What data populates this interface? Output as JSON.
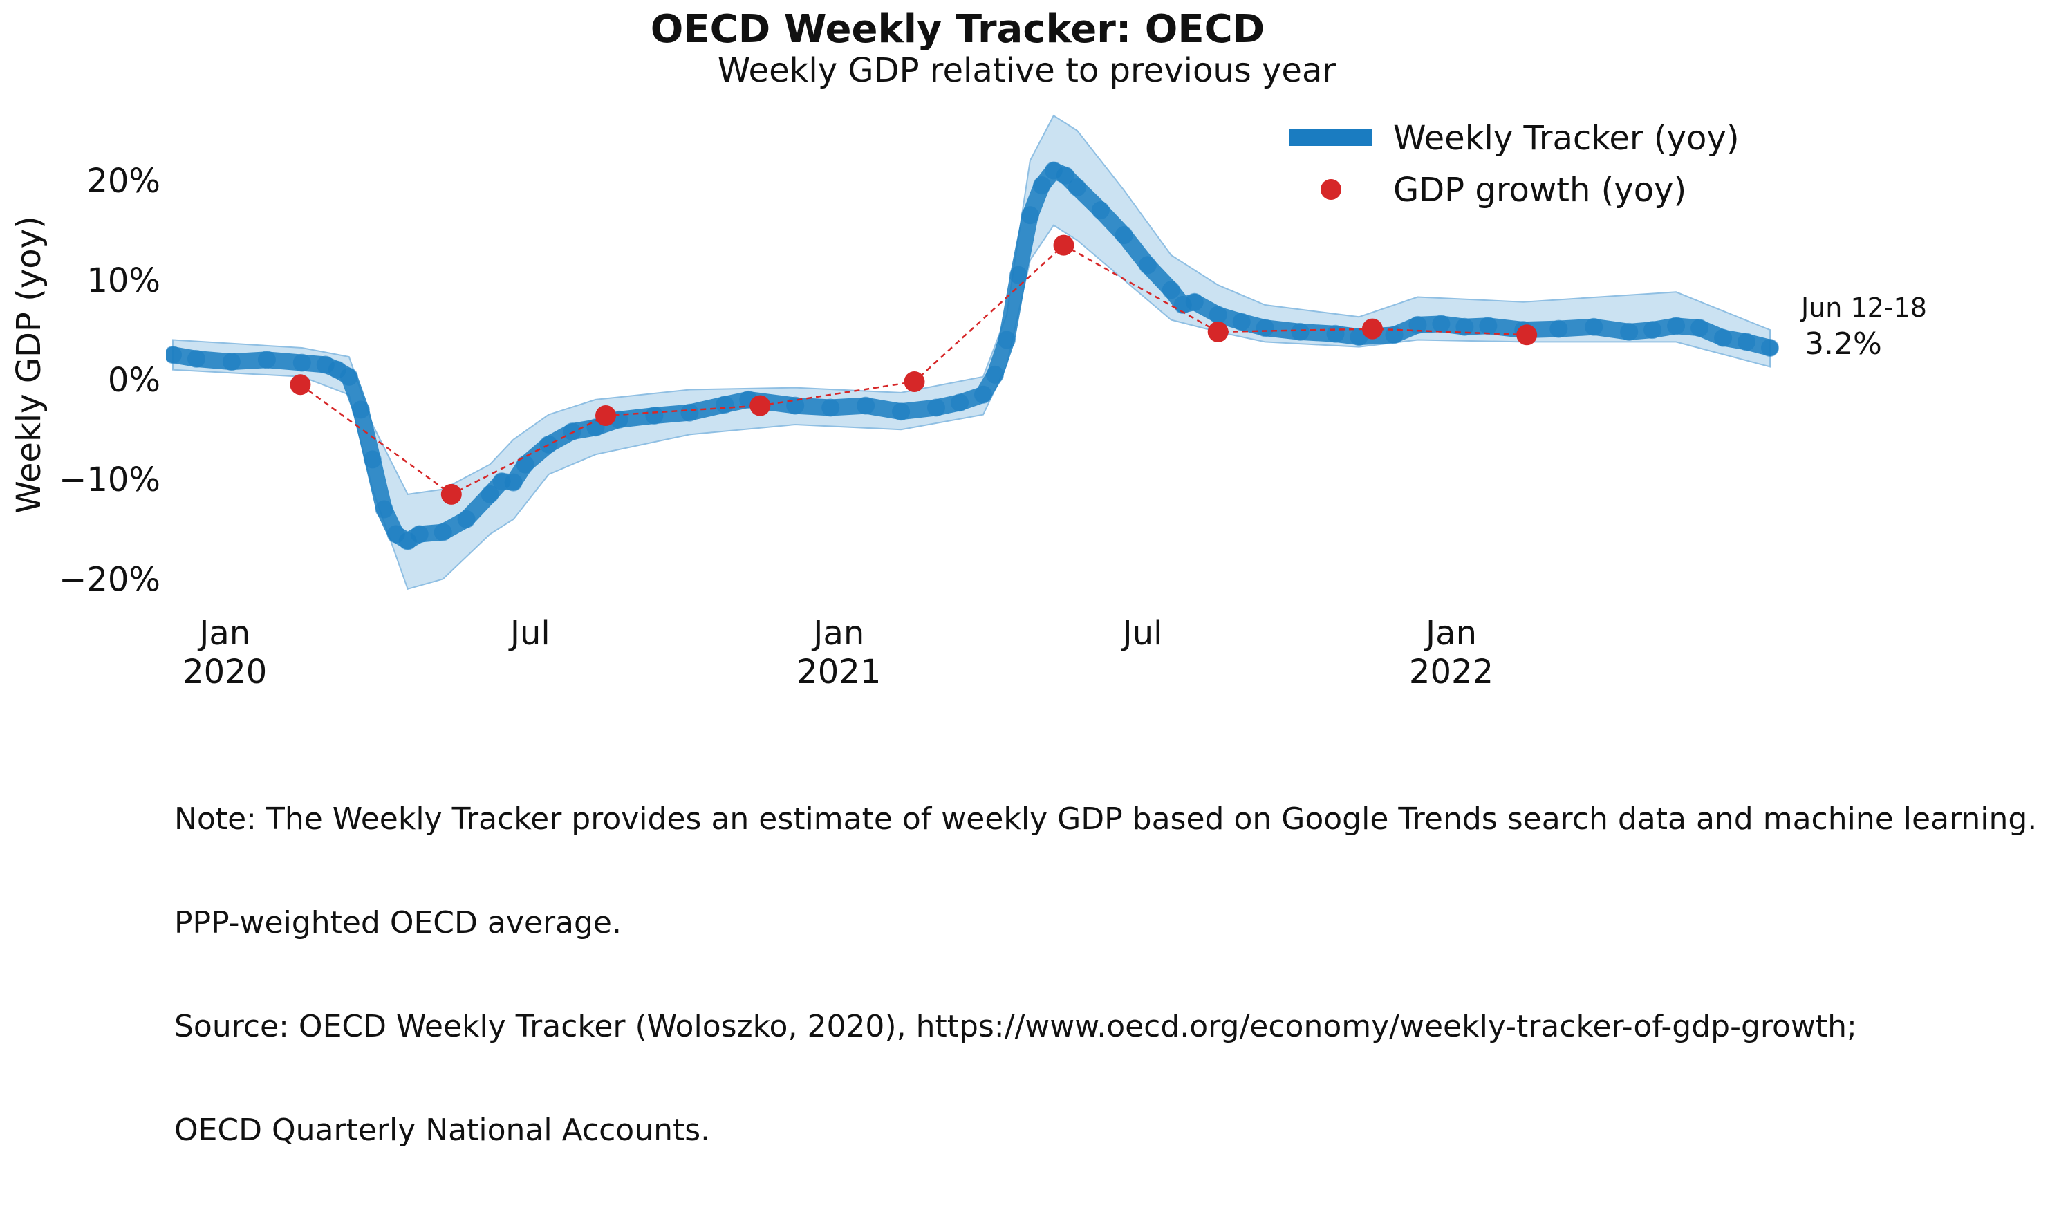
{
  "title": "OECD Weekly Tracker: OECD",
  "subtitle": "Weekly GDP relative to previous year",
  "notes": [
    "Note: The Weekly Tracker provides an estimate of weekly GDP based on Google Trends search data and machine learning.",
    "PPP-weighted OECD average.",
    "Source: OECD Weekly Tracker (Woloszko, 2020), https://www.oecd.org/economy/weekly-tracker-of-gdp-growth;",
    "OECD Quarterly National Accounts."
  ],
  "colors": {
    "tracker": "#1a7cc1",
    "band": "#a9cfea",
    "gdp": "#d62728"
  },
  "chart_data": {
    "type": "line",
    "ylabel": "Weekly GDP (yoy)",
    "ylim": [
      -24,
      27
    ],
    "yticks": [
      -20,
      -10,
      0,
      10,
      20
    ],
    "ytick_labels": [
      "−20%",
      "−10%",
      "0%",
      "10%",
      "20%"
    ],
    "xticks": [
      {
        "date": "2020-01-01",
        "label": [
          "Jan",
          "2020"
        ]
      },
      {
        "date": "2020-07-01",
        "label": [
          "Jul"
        ]
      },
      {
        "date": "2021-01-01",
        "label": [
          "Jan",
          "2021"
        ]
      },
      {
        "date": "2021-07-01",
        "label": [
          "Jul"
        ]
      },
      {
        "date": "2022-01-01",
        "label": [
          "Jan",
          "2022"
        ]
      }
    ],
    "x_range": [
      "2019-12-01",
      "2022-07-10"
    ],
    "legend": {
      "placement": "top-right",
      "entries": [
        "Weekly Tracker (yoy)",
        "GDP growth (yoy)"
      ]
    },
    "last_value_label": {
      "date": "Jun 12-18",
      "value": "3.2%"
    },
    "series": [
      {
        "name": "Weekly Tracker (yoy)",
        "kind": "line-with-band",
        "points": [
          [
            "2019-12-01",
            2.5
          ],
          [
            "2019-12-15",
            2.1
          ],
          [
            "2020-01-05",
            1.8
          ],
          [
            "2020-01-26",
            2.0
          ],
          [
            "2020-02-16",
            1.7
          ],
          [
            "2020-03-01",
            1.5
          ],
          [
            "2020-03-08",
            1.0
          ],
          [
            "2020-03-15",
            0.3
          ],
          [
            "2020-03-22",
            -3.0
          ],
          [
            "2020-03-29",
            -8.0
          ],
          [
            "2020-04-05",
            -13.0
          ],
          [
            "2020-04-12",
            -15.5
          ],
          [
            "2020-04-19",
            -16.2
          ],
          [
            "2020-04-26",
            -15.5
          ],
          [
            "2020-05-10",
            -15.3
          ],
          [
            "2020-05-24",
            -14.0
          ],
          [
            "2020-06-07",
            -11.5
          ],
          [
            "2020-06-14",
            -10.2
          ],
          [
            "2020-06-21",
            -10.3
          ],
          [
            "2020-06-28",
            -8.5
          ],
          [
            "2020-07-12",
            -6.5
          ],
          [
            "2020-07-26",
            -5.2
          ],
          [
            "2020-08-09",
            -4.8
          ],
          [
            "2020-08-23",
            -4.0
          ],
          [
            "2020-09-13",
            -3.6
          ],
          [
            "2020-10-04",
            -3.3
          ],
          [
            "2020-10-25",
            -2.5
          ],
          [
            "2020-11-08",
            -2.0
          ],
          [
            "2020-12-06",
            -2.6
          ],
          [
            "2020-12-27",
            -2.8
          ],
          [
            "2021-01-17",
            -2.6
          ],
          [
            "2021-02-07",
            -3.2
          ],
          [
            "2021-02-28",
            -2.8
          ],
          [
            "2021-03-14",
            -2.3
          ],
          [
            "2021-03-28",
            -1.5
          ],
          [
            "2021-04-04",
            0.5
          ],
          [
            "2021-04-11",
            4.0
          ],
          [
            "2021-04-18",
            10.5
          ],
          [
            "2021-04-25",
            16.5
          ],
          [
            "2021-05-02",
            19.5
          ],
          [
            "2021-05-09",
            21.0
          ],
          [
            "2021-05-16",
            20.5
          ],
          [
            "2021-05-23",
            19.3
          ],
          [
            "2021-06-06",
            17.0
          ],
          [
            "2021-06-20",
            14.5
          ],
          [
            "2021-07-04",
            11.5
          ],
          [
            "2021-07-18",
            9.0
          ],
          [
            "2021-07-25",
            7.5
          ],
          [
            "2021-08-01",
            7.8
          ],
          [
            "2021-08-15",
            6.5
          ],
          [
            "2021-08-29",
            5.8
          ],
          [
            "2021-09-12",
            5.2
          ],
          [
            "2021-10-03",
            4.8
          ],
          [
            "2021-10-24",
            4.6
          ],
          [
            "2021-11-07",
            4.3
          ],
          [
            "2021-11-28",
            4.5
          ],
          [
            "2021-12-12",
            5.5
          ],
          [
            "2021-12-26",
            5.6
          ],
          [
            "2022-01-09",
            5.3
          ],
          [
            "2022-01-23",
            5.4
          ],
          [
            "2022-02-13",
            5.0
          ],
          [
            "2022-03-06",
            5.1
          ],
          [
            "2022-03-27",
            5.3
          ],
          [
            "2022-04-17",
            4.8
          ],
          [
            "2022-05-01",
            5.0
          ],
          [
            "2022-05-15",
            5.4
          ],
          [
            "2022-05-29",
            5.2
          ],
          [
            "2022-06-12",
            4.2
          ],
          [
            "2022-06-26",
            3.8
          ],
          [
            "2022-07-10",
            3.2
          ]
        ],
        "band": [
          [
            "2019-12-01",
            1.0,
            4.0
          ],
          [
            "2020-02-16",
            0.3,
            3.2
          ],
          [
            "2020-03-15",
            -1.5,
            2.3
          ],
          [
            "2020-03-29",
            -11.0,
            -4.5
          ],
          [
            "2020-04-19",
            -21.0,
            -11.5
          ],
          [
            "2020-05-10",
            -20.0,
            -11.0
          ],
          [
            "2020-06-07",
            -15.5,
            -8.5
          ],
          [
            "2020-06-21",
            -14.0,
            -6.0
          ],
          [
            "2020-07-12",
            -9.5,
            -3.5
          ],
          [
            "2020-08-09",
            -7.5,
            -2.0
          ],
          [
            "2020-10-04",
            -5.5,
            -1.0
          ],
          [
            "2020-12-06",
            -4.5,
            -0.8
          ],
          [
            "2021-02-07",
            -5.0,
            -1.3
          ],
          [
            "2021-03-28",
            -3.5,
            0.3
          ],
          [
            "2021-04-11",
            1.5,
            6.5
          ],
          [
            "2021-04-25",
            12.0,
            22.0
          ],
          [
            "2021-05-09",
            15.5,
            26.5
          ],
          [
            "2021-05-23",
            14.0,
            25.0
          ],
          [
            "2021-06-20",
            10.0,
            19.0
          ],
          [
            "2021-07-18",
            6.0,
            12.5
          ],
          [
            "2021-08-15",
            4.8,
            9.5
          ],
          [
            "2021-09-12",
            3.8,
            7.5
          ],
          [
            "2021-11-07",
            3.3,
            6.3
          ],
          [
            "2021-12-12",
            4.0,
            8.3
          ],
          [
            "2022-02-13",
            3.8,
            7.8
          ],
          [
            "2022-05-15",
            3.8,
            8.8
          ],
          [
            "2022-07-10",
            1.3,
            5.0
          ]
        ]
      },
      {
        "name": "GDP growth (yoy)",
        "kind": "markers-dashed",
        "points": [
          [
            "2020-02-15",
            -0.5
          ],
          [
            "2020-05-15",
            -11.5
          ],
          [
            "2020-08-15",
            -3.6
          ],
          [
            "2020-11-15",
            -2.6
          ],
          [
            "2021-02-15",
            -0.2
          ],
          [
            "2021-05-15",
            13.5
          ],
          [
            "2021-08-15",
            4.8
          ],
          [
            "2021-11-15",
            5.1
          ],
          [
            "2022-02-15",
            4.5
          ]
        ]
      }
    ]
  }
}
